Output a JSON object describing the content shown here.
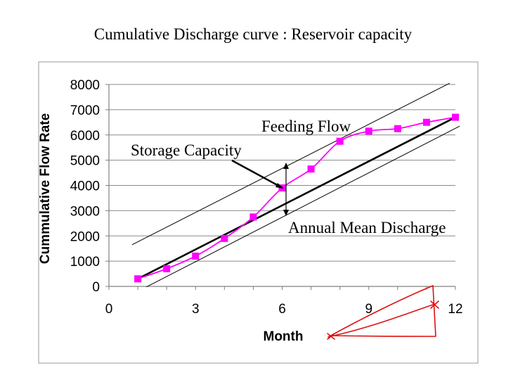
{
  "page": {
    "title": "Cumulative Discharge curve : Reservoir capacity"
  },
  "chart_data": {
    "type": "line",
    "title": "",
    "xlabel": "Month",
    "ylabel": "Cummulative Flow Rate",
    "xlim": [
      0,
      12
    ],
    "ylim": [
      0,
      8000
    ],
    "xticks": [
      0,
      3,
      6,
      9,
      12
    ],
    "yticks": [
      0,
      1000,
      2000,
      3000,
      4000,
      5000,
      6000,
      7000,
      8000
    ],
    "grid": "horizontal",
    "legend": "none",
    "series": [
      {
        "x": [
          1,
          2,
          3,
          4,
          5,
          6,
          7,
          8,
          9,
          10,
          11,
          12
        ],
        "values": [
          300,
          700,
          1200,
          1900,
          2750,
          3900,
          4650,
          5750,
          6150,
          6250,
          6500,
          6700
        ],
        "color": "#ff00ff",
        "marker": "square"
      }
    ],
    "reference_lines": [
      {
        "name": "mean",
        "points": [
          [
            1,
            300
          ],
          [
            12,
            6700
          ]
        ],
        "color": "#000000",
        "width": "thick"
      },
      {
        "name": "upper-tangent",
        "points": [
          [
            0.8,
            1650
          ],
          [
            11.8,
            8050
          ]
        ],
        "color": "#000000",
        "width": "thin"
      },
      {
        "name": "lower-tangent",
        "points": [
          [
            1.3,
            -20
          ],
          [
            12.15,
            6350
          ]
        ],
        "color": "#000000",
        "width": "thin"
      }
    ],
    "annotations": [
      {
        "text": "Feeding Flow"
      },
      {
        "text": "Storage Capacity"
      },
      {
        "text": "Annual Mean Discharge"
      }
    ],
    "colors": {
      "series": "#ff00ff",
      "plot_background": "#ffffff",
      "sketch": "#dd1111"
    }
  }
}
